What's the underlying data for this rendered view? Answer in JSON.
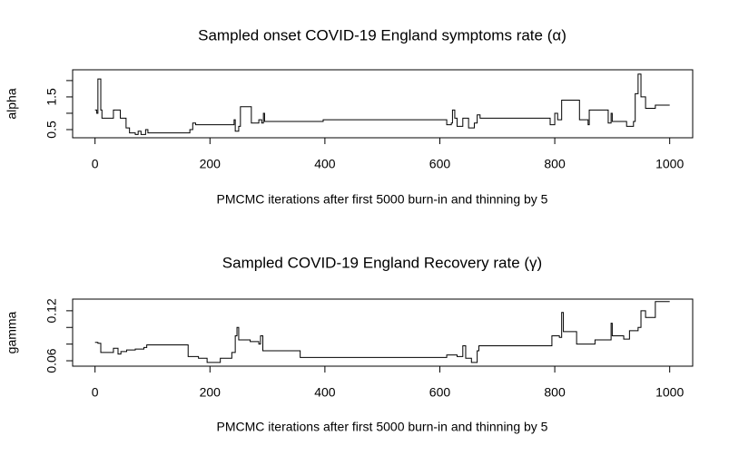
{
  "chart_data": [
    {
      "type": "line",
      "line_style": "step",
      "title": "Sampled onset COVID-19 England symptoms rate (α)",
      "x_label": "PMCMC iterations after first 5000 burn-in and thinning by 5",
      "y_label": "alpha",
      "xlim": [
        -39,
        1040
      ],
      "xticks": [
        0,
        200,
        400,
        600,
        800,
        1000
      ],
      "ylim": [
        0.25,
        2.33
      ],
      "yticks": [
        0.5,
        1.5
      ],
      "yminorticks": [
        1,
        2
      ],
      "series": [
        {
          "color": "#000000",
          "x": [
            0,
            3,
            5,
            10,
            12,
            32,
            44,
            54,
            60,
            70,
            75,
            80,
            88,
            92,
            165,
            170,
            175,
            242,
            244,
            250,
            253,
            272,
            285,
            290,
            293,
            295,
            397,
            612,
            620,
            622,
            626,
            630,
            640,
            650,
            660,
            665,
            670,
            792,
            800,
            805,
            812,
            843,
            858,
            860,
            893,
            898,
            900,
            925,
            937,
            940,
            945,
            950,
            958,
            975,
            1000
          ],
          "values": [
            1.1,
            1.0,
            2.05,
            1.1,
            0.85,
            1.1,
            0.85,
            0.55,
            0.4,
            0.35,
            0.45,
            0.35,
            0.5,
            0.4,
            0.5,
            0.7,
            0.65,
            0.8,
            0.45,
            0.6,
            1.2,
            0.7,
            0.8,
            0.7,
            1.0,
            0.75,
            0.8,
            0.65,
            0.7,
            1.1,
            0.85,
            0.6,
            0.85,
            0.55,
            0.7,
            0.95,
            0.85,
            0.65,
            1.0,
            0.8,
            1.4,
            0.8,
            0.65,
            1.1,
            0.7,
            1.0,
            0.75,
            0.6,
            0.75,
            1.6,
            2.2,
            1.5,
            1.15,
            1.25,
            1.25
          ]
        }
      ]
    },
    {
      "type": "line",
      "line_style": "step",
      "title": "Sampled COVID-19 England Recovery rate (γ)",
      "x_label": "PMCMC iterations after first 5000 burn-in and thinning by 5",
      "y_label": "gamma",
      "xlim": [
        -39,
        1040
      ],
      "xticks": [
        0,
        200,
        400,
        600,
        800,
        1000
      ],
      "ylim": [
        0.0535,
        0.134
      ],
      "yticks": [
        0.06,
        0.12
      ],
      "yminorticks": [
        0.08,
        0.1
      ],
      "series": [
        {
          "color": "#000000",
          "x": [
            0,
            5,
            10,
            32,
            40,
            45,
            55,
            70,
            85,
            90,
            162,
            180,
            195,
            218,
            238,
            244,
            247,
            250,
            270,
            285,
            288,
            292,
            357,
            612,
            630,
            640,
            645,
            655,
            665,
            668,
            795,
            808,
            812,
            815,
            838,
            870,
            898,
            900,
            920,
            930,
            945,
            950,
            958,
            975,
            1000
          ],
          "values": [
            0.082,
            0.081,
            0.07,
            0.075,
            0.068,
            0.071,
            0.073,
            0.074,
            0.076,
            0.079,
            0.065,
            0.063,
            0.058,
            0.063,
            0.07,
            0.09,
            0.1,
            0.085,
            0.083,
            0.08,
            0.09,
            0.072,
            0.064,
            0.067,
            0.065,
            0.078,
            0.063,
            0.058,
            0.072,
            0.078,
            0.09,
            0.088,
            0.118,
            0.095,
            0.08,
            0.085,
            0.105,
            0.09,
            0.086,
            0.096,
            0.1,
            0.12,
            0.112,
            0.131,
            0.131
          ]
        }
      ]
    }
  ]
}
